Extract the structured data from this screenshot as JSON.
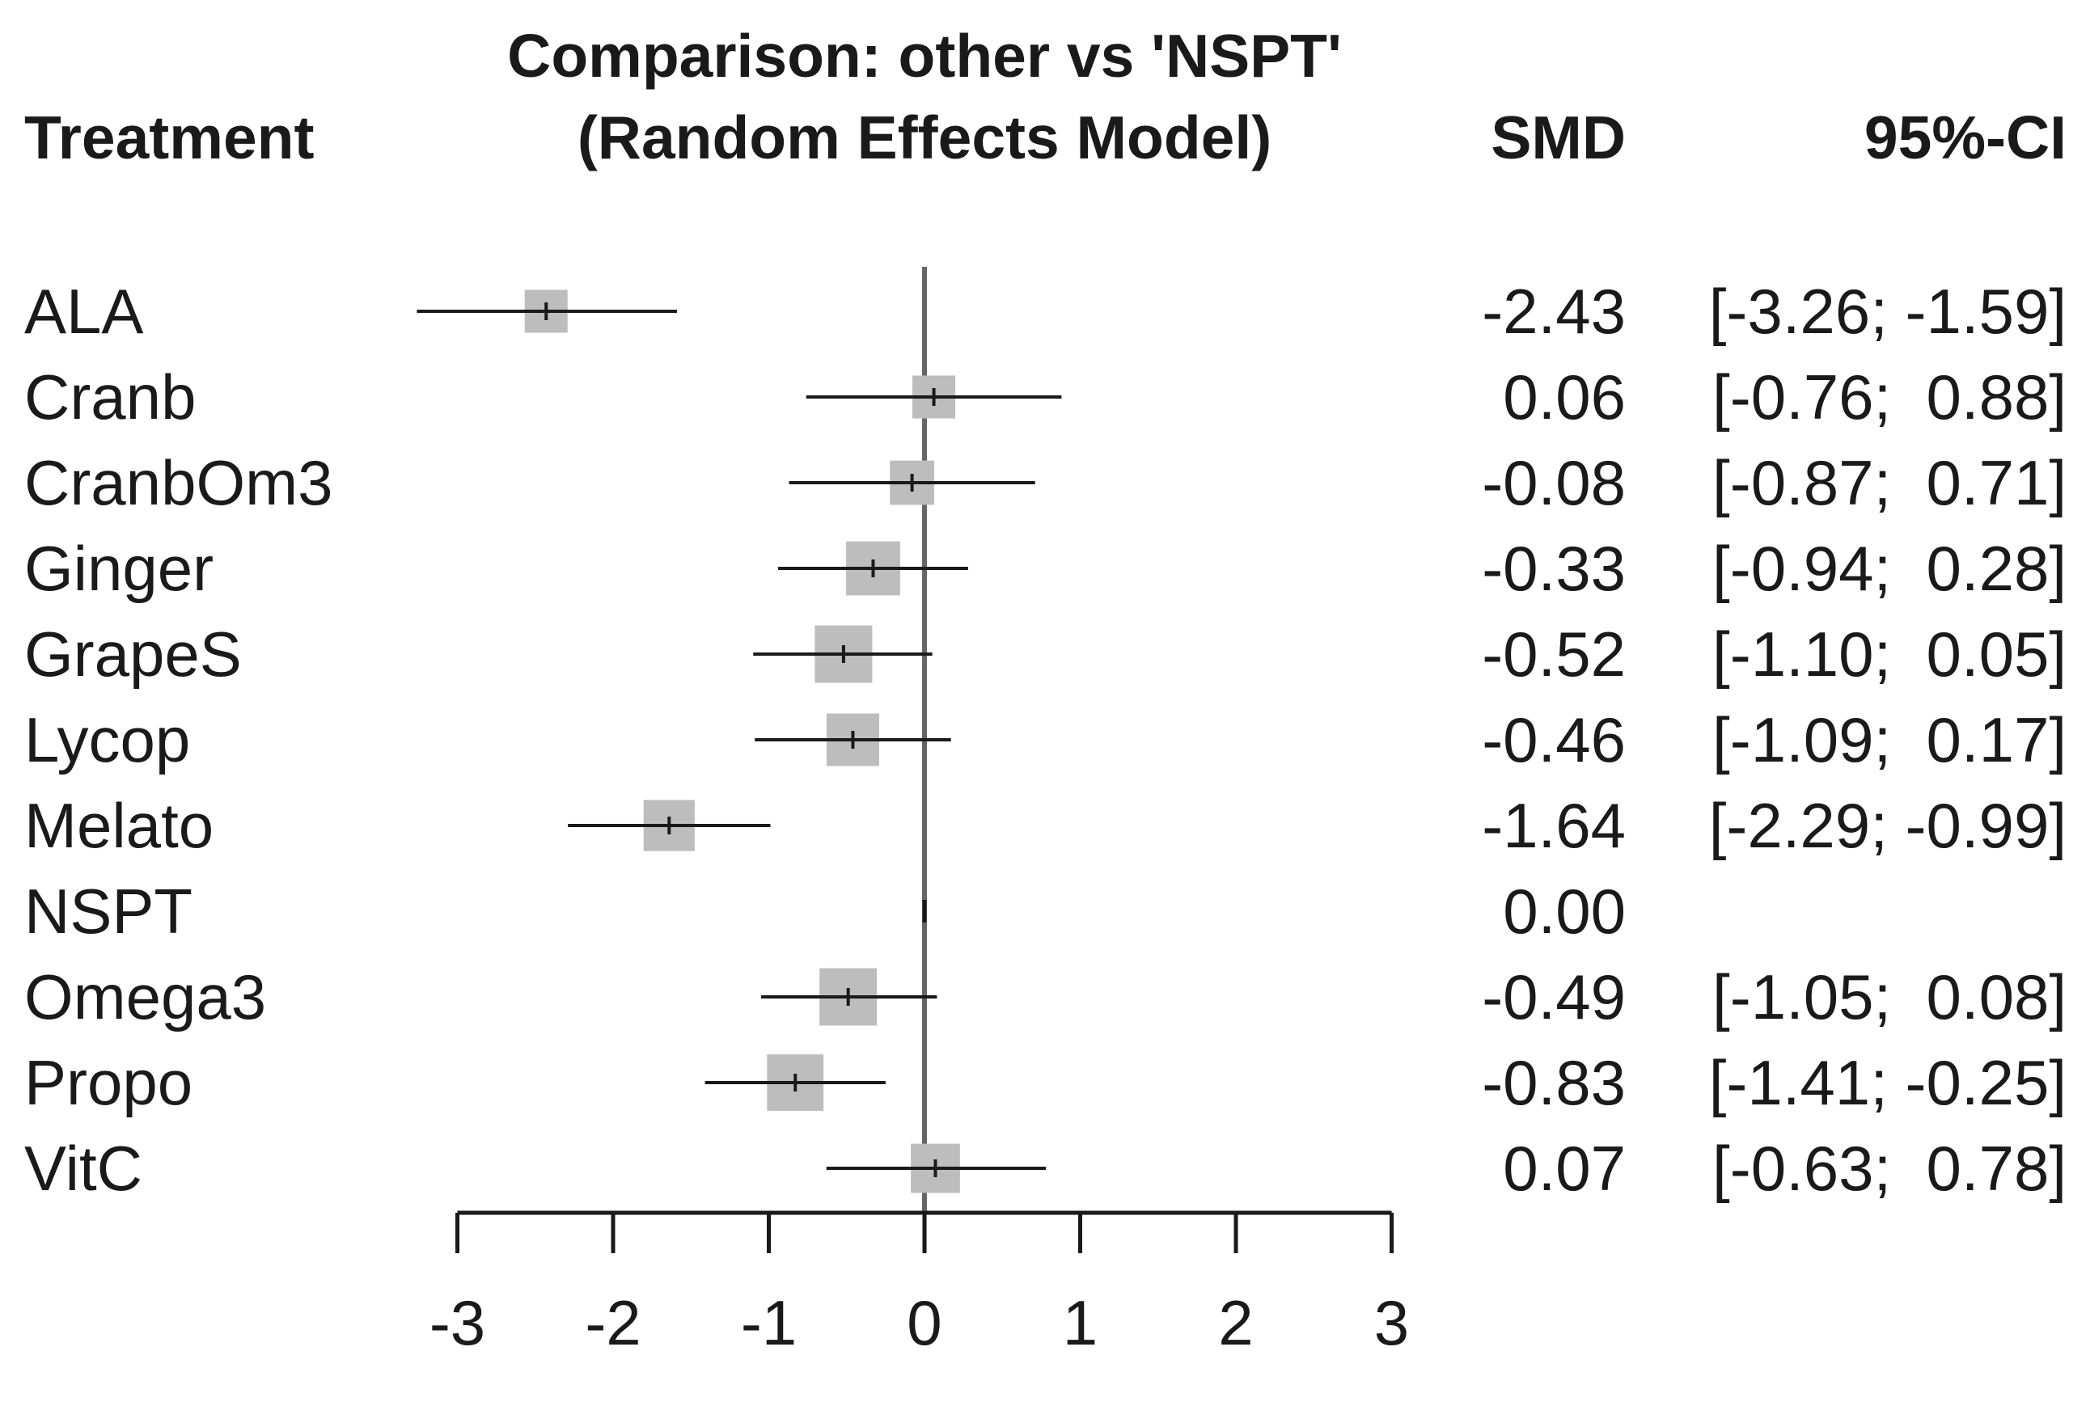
{
  "chart_data": {
    "type": "forest",
    "title": "Comparison: other vs 'NSPT'",
    "subtitle": "(Random Effects Model)",
    "headers": {
      "treatment": "Treatment",
      "effect": "SMD",
      "ci": "95%-CI"
    },
    "xlim": [
      -3,
      3
    ],
    "x_ticks": [
      -3,
      -2,
      -1,
      0,
      1,
      2,
      3
    ],
    "x_tick_labels": [
      "-3",
      "-2",
      "-1",
      "0",
      "1",
      "2",
      "3"
    ],
    "reference_value": 0,
    "rows": [
      {
        "treatment": "ALA",
        "smd": -2.43,
        "lower": -3.26,
        "upper": -1.59,
        "weight": 0.55,
        "smd_text": "-2.43",
        "ci_text": "[-3.26; -1.59]"
      },
      {
        "treatment": "Cranb",
        "smd": 0.06,
        "lower": -0.76,
        "upper": 0.88,
        "weight": 0.55,
        "smd_text": "0.06",
        "ci_text": "[-0.76;  0.88]"
      },
      {
        "treatment": "CranbOm3",
        "smd": -0.08,
        "lower": -0.87,
        "upper": 0.71,
        "weight": 0.58,
        "smd_text": "-0.08",
        "ci_text": "[-0.87;  0.71]"
      },
      {
        "treatment": "Ginger",
        "smd": -0.33,
        "lower": -0.94,
        "upper": 0.28,
        "weight": 0.78,
        "smd_text": "-0.33",
        "ci_text": "[-0.94;  0.28]"
      },
      {
        "treatment": "GrapeS",
        "smd": -0.52,
        "lower": -1.1,
        "upper": 0.05,
        "weight": 0.85,
        "smd_text": "-0.52",
        "ci_text": "[-1.10;  0.05]"
      },
      {
        "treatment": "Lycop",
        "smd": -0.46,
        "lower": -1.09,
        "upper": 0.17,
        "weight": 0.75,
        "smd_text": "-0.46",
        "ci_text": "[-1.09;  0.17]"
      },
      {
        "treatment": "Melato",
        "smd": -1.64,
        "lower": -2.29,
        "upper": -0.99,
        "weight": 0.72,
        "smd_text": "-1.64",
        "ci_text": "[-2.29; -0.99]"
      },
      {
        "treatment": "NSPT",
        "smd": 0.0,
        "lower": null,
        "upper": null,
        "weight": 0,
        "smd_text": "0.00",
        "ci_text": ""
      },
      {
        "treatment": "Omega3",
        "smd": -0.49,
        "lower": -1.05,
        "upper": 0.08,
        "weight": 0.85,
        "smd_text": "-0.49",
        "ci_text": "[-1.05;  0.08]"
      },
      {
        "treatment": "Propo",
        "smd": -0.83,
        "lower": -1.41,
        "upper": -0.25,
        "weight": 0.83,
        "smd_text": "-0.83",
        "ci_text": "[-1.41; -0.25]"
      },
      {
        "treatment": "VitC",
        "smd": 0.07,
        "lower": -0.63,
        "upper": 0.78,
        "weight": 0.68,
        "smd_text": "0.07",
        "ci_text": "[-0.63;  0.78]"
      }
    ]
  },
  "colors": {
    "square": "#bdbdbd",
    "line": "#1a1a1a",
    "reference": "#666666"
  }
}
